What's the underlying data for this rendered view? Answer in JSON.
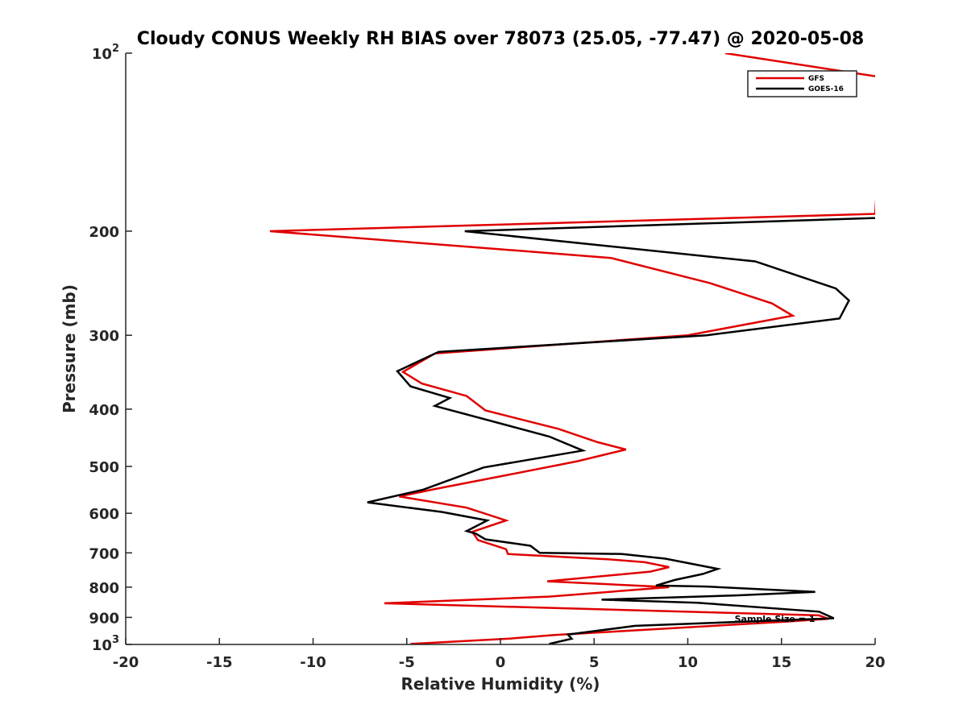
{
  "chart_data": {
    "type": "line",
    "title": "Cloudy CONUS Weekly RH BIAS over 78073 (25.05, -77.47) @ 2020-05-08",
    "xlabel": "Relative Humidity (%)",
    "ylabel": "Pressure (mb)",
    "xlim": [
      -20,
      20
    ],
    "ylim": [
      100,
      1000
    ],
    "y_scale": "log",
    "y_reversed": true,
    "grid": false,
    "legend_position": "top-right",
    "x_ticks": [
      -20,
      -15,
      -10,
      -5,
      0,
      5,
      10,
      15,
      20
    ],
    "y_ticks": [
      {
        "value": 100,
        "label": "10",
        "sup": "2"
      },
      {
        "value": 200,
        "label": "200",
        "sup": ""
      },
      {
        "value": 300,
        "label": "300",
        "sup": ""
      },
      {
        "value": 400,
        "label": "400",
        "sup": ""
      },
      {
        "value": 500,
        "label": "500",
        "sup": ""
      },
      {
        "value": 600,
        "label": "600",
        "sup": ""
      },
      {
        "value": 700,
        "label": "700",
        "sup": ""
      },
      {
        "value": 800,
        "label": "800",
        "sup": ""
      },
      {
        "value": 900,
        "label": "900",
        "sup": ""
      },
      {
        "value": 1000,
        "label": "10",
        "sup": "3"
      }
    ],
    "annotation": {
      "text": "Sample Size = 1",
      "x": 12.5,
      "y": 905
    },
    "series": [
      {
        "name": "GFS",
        "color": "#e00000",
        "points": [
          [
            12.0,
            100
          ],
          [
            20.5,
            110
          ],
          [
            20.0,
            187
          ],
          [
            -12.3,
            200
          ],
          [
            5.9,
            222
          ],
          [
            11.2,
            245
          ],
          [
            14.5,
            265
          ],
          [
            15.6,
            278
          ],
          [
            10.0,
            300
          ],
          [
            -3.5,
            322
          ],
          [
            -5.2,
            346
          ],
          [
            -4.2,
            362
          ],
          [
            -1.8,
            380
          ],
          [
            -0.8,
            402
          ],
          [
            3.1,
            432
          ],
          [
            5.2,
            455
          ],
          [
            6.7,
            468
          ],
          [
            4.1,
            490
          ],
          [
            0.1,
            519
          ],
          [
            -3.5,
            546
          ],
          [
            -5.4,
            562
          ],
          [
            -1.8,
            587
          ],
          [
            0.3,
            617
          ],
          [
            -1.5,
            645
          ],
          [
            -1.2,
            666
          ],
          [
            0.3,
            690
          ],
          [
            0.4,
            703
          ],
          [
            5.8,
            718
          ],
          [
            7.7,
            726
          ],
          [
            9.0,
            740
          ],
          [
            8.0,
            753
          ],
          [
            2.5,
            782
          ],
          [
            9.0,
            800
          ],
          [
            2.6,
            830
          ],
          [
            -6.2,
            852
          ],
          [
            17.0,
            893
          ],
          [
            17.5,
            905
          ],
          [
            15.2,
            915
          ],
          [
            2.9,
            964
          ],
          [
            0.4,
            978
          ],
          [
            -4.8,
            998
          ]
        ]
      },
      {
        "name": "GOES-16",
        "color": "#000000",
        "points": [
          [
            20.0,
            190
          ],
          [
            -1.9,
            200
          ],
          [
            13.6,
            225
          ],
          [
            17.9,
            250
          ],
          [
            18.6,
            262
          ],
          [
            18.1,
            281
          ],
          [
            11.0,
            300
          ],
          [
            -3.3,
            320
          ],
          [
            -5.5,
            345
          ],
          [
            -4.8,
            366
          ],
          [
            -2.7,
            383
          ],
          [
            -3.5,
            395
          ],
          [
            2.6,
            445
          ],
          [
            4.4,
            470
          ],
          [
            -0.9,
            502
          ],
          [
            -4.1,
            547
          ],
          [
            -7.1,
            575
          ],
          [
            -3.1,
            597
          ],
          [
            -0.7,
            617
          ],
          [
            -1.8,
            643
          ],
          [
            -1.3,
            650
          ],
          [
            -0.8,
            664
          ],
          [
            1.6,
            681
          ],
          [
            2.1,
            700
          ],
          [
            6.5,
            703
          ],
          [
            8.8,
            716
          ],
          [
            11.6,
            745
          ],
          [
            10.8,
            760
          ],
          [
            9.3,
            778
          ],
          [
            8.3,
            795
          ],
          [
            11.0,
            798
          ],
          [
            16.8,
            815
          ],
          [
            12.6,
            826
          ],
          [
            5.4,
            840
          ],
          [
            10.5,
            850
          ],
          [
            17.0,
            880
          ],
          [
            17.8,
            903
          ],
          [
            7.2,
            930
          ],
          [
            3.6,
            962
          ],
          [
            3.8,
            978
          ],
          [
            2.6,
            998
          ]
        ]
      }
    ]
  }
}
